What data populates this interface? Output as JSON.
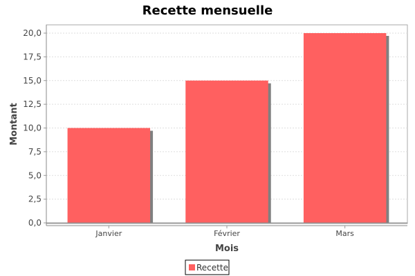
{
  "chart_data": {
    "type": "bar",
    "title": "Recette mensuelle",
    "xlabel": "Mois",
    "ylabel": "Montant",
    "categories": [
      "Janvier",
      "Février",
      "Mars"
    ],
    "series": [
      {
        "name": "Recette",
        "values": [
          10.0,
          15.0,
          20.0
        ],
        "color": "#ff6060"
      }
    ],
    "ylim": [
      0,
      20.0
    ],
    "yticks": [
      "0,0",
      "2,5",
      "5,0",
      "7,5",
      "10,0",
      "12,5",
      "15,0",
      "17,5",
      "20,0"
    ],
    "grid": true,
    "legend": "bottom-center"
  },
  "colors": {
    "bar": "#ff6060",
    "bar_shadow": "#808080",
    "grid": "#dddddd",
    "axis": "#999999",
    "plot_border": "#aaaaaa"
  }
}
